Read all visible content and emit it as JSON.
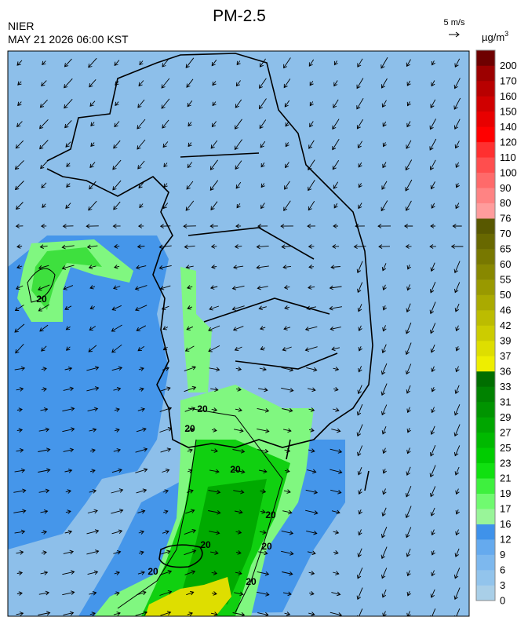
{
  "header": {
    "title": "PM-2.5",
    "agency": "NIER",
    "datetime": "MAY 21 2026 06:00 KST",
    "wind_scale": "5 m/s"
  },
  "legend": {
    "unit": {
      "base": "µg/m",
      "sup": "3"
    },
    "levels": [
      {
        "label": 0,
        "color": "#a9cfe8"
      },
      {
        "label": 3,
        "color": "#92c4ec"
      },
      {
        "label": 6,
        "color": "#7db8ee"
      },
      {
        "label": 9,
        "color": "#65aaee"
      },
      {
        "label": 12,
        "color": "#3f92ea"
      },
      {
        "label": 16,
        "color": "#99f599"
      },
      {
        "label": 17,
        "color": "#70fa70"
      },
      {
        "label": 19,
        "color": "#3ef03e"
      },
      {
        "label": 21,
        "color": "#10e010"
      },
      {
        "label": 23,
        "color": "#00cc00"
      },
      {
        "label": 25,
        "color": "#00b900"
      },
      {
        "label": 27,
        "color": "#00a600"
      },
      {
        "label": 29,
        "color": "#009400"
      },
      {
        "label": 31,
        "color": "#008200"
      },
      {
        "label": 33,
        "color": "#006e00"
      },
      {
        "label": 36,
        "color": "#eeee00"
      },
      {
        "label": 37,
        "color": "#dede00"
      },
      {
        "label": 39,
        "color": "#cccc00"
      },
      {
        "label": 42,
        "color": "#bcbc00"
      },
      {
        "label": 46,
        "color": "#aaaa00"
      },
      {
        "label": 50,
        "color": "#999900"
      },
      {
        "label": 55,
        "color": "#888800"
      },
      {
        "label": 60,
        "color": "#787800"
      },
      {
        "label": 65,
        "color": "#686800"
      },
      {
        "label": 70,
        "color": "#585800"
      },
      {
        "label": 76,
        "color": "#ff9c9c"
      },
      {
        "label": 80,
        "color": "#ff8383"
      },
      {
        "label": 90,
        "color": "#ff6a6a"
      },
      {
        "label": 100,
        "color": "#ff4e4e"
      },
      {
        "label": 110,
        "color": "#ff3030"
      },
      {
        "label": 120,
        "color": "#ff0000"
      },
      {
        "label": 140,
        "color": "#e80000"
      },
      {
        "label": 150,
        "color": "#d00000"
      },
      {
        "label": 160,
        "color": "#b80000"
      },
      {
        "label": 170,
        "color": "#9c0000"
      },
      {
        "label": 200,
        "color": "#6e0000"
      }
    ]
  },
  "contour_labels": [
    20,
    20,
    20,
    20,
    20,
    20,
    20,
    20,
    20
  ]
}
